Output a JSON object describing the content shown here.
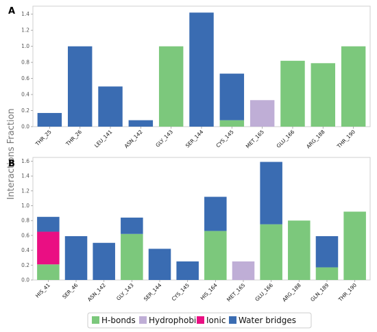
{
  "figure": {
    "ylabel": "Interactions Fraction",
    "legend": [
      {
        "key": "hbonds",
        "label": "H-bonds",
        "color": "#7cc87c"
      },
      {
        "key": "hydrophobic",
        "label": "Hydrophobic",
        "color": "#bfaed6"
      },
      {
        "key": "ionic",
        "label": "Ionic",
        "color": "#ea0f83"
      },
      {
        "key": "water",
        "label": "Water bridges",
        "color": "#3a6cb2"
      }
    ]
  },
  "chart_data": [
    {
      "type": "bar",
      "stacked": true,
      "panel": "A",
      "categories": [
        "THR_25",
        "THR_26",
        "LEU_141",
        "ASN_142",
        "GLY_143",
        "SER_144",
        "CYS_145",
        "MET_165",
        "GLU_166",
        "ARG_188",
        "THR_190"
      ],
      "series": [
        {
          "name": "H-bonds",
          "key": "hbonds",
          "values": [
            0,
            0,
            0,
            0,
            1.0,
            0,
            0.08,
            0,
            0.82,
            0.79,
            1.0
          ]
        },
        {
          "name": "Hydrophobic",
          "key": "hydrophobic",
          "values": [
            0,
            0,
            0,
            0,
            0,
            0,
            0,
            0.33,
            0,
            0,
            0
          ]
        },
        {
          "name": "Ionic",
          "key": "ionic",
          "values": [
            0,
            0,
            0,
            0,
            0,
            0,
            0,
            0,
            0,
            0,
            0
          ]
        },
        {
          "name": "Water bridges",
          "key": "water",
          "values": [
            0.17,
            1.0,
            0.5,
            0.08,
            0,
            1.42,
            0.58,
            0,
            0,
            0,
            0
          ]
        }
      ],
      "ylim": [
        0,
        1.5
      ],
      "yticks": [
        0.0,
        0.2,
        0.4,
        0.6,
        0.8,
        1.0,
        1.2,
        1.4
      ]
    },
    {
      "type": "bar",
      "stacked": true,
      "panel": "B",
      "categories": [
        "HIS_41",
        "SER_46",
        "ASN_142",
        "GLY_143",
        "SER_144",
        "CYS_145",
        "HIS_164",
        "MET_165",
        "GLU_166",
        "ARG_188",
        "GLN_189",
        "THR_190"
      ],
      "series": [
        {
          "name": "H-bonds",
          "key": "hbonds",
          "values": [
            0.21,
            0,
            0,
            0.62,
            0,
            0,
            0.66,
            0,
            0.75,
            0.8,
            0.17,
            0.92
          ]
        },
        {
          "name": "Hydrophobic",
          "key": "hydrophobic",
          "values": [
            0,
            0,
            0,
            0,
            0,
            0,
            0,
            0.25,
            0,
            0,
            0,
            0
          ]
        },
        {
          "name": "Ionic",
          "key": "ionic",
          "values": [
            0.44,
            0,
            0,
            0,
            0,
            0,
            0,
            0,
            0,
            0,
            0,
            0
          ]
        },
        {
          "name": "Water bridges",
          "key": "water",
          "values": [
            0.2,
            0.59,
            0.5,
            0.22,
            0.42,
            0.25,
            0.46,
            0,
            0.84,
            0,
            0.42,
            0
          ]
        }
      ],
      "ylim": [
        0,
        1.65
      ],
      "yticks": [
        0.0,
        0.2,
        0.4,
        0.6,
        0.8,
        1.0,
        1.2,
        1.4,
        1.6
      ]
    }
  ]
}
